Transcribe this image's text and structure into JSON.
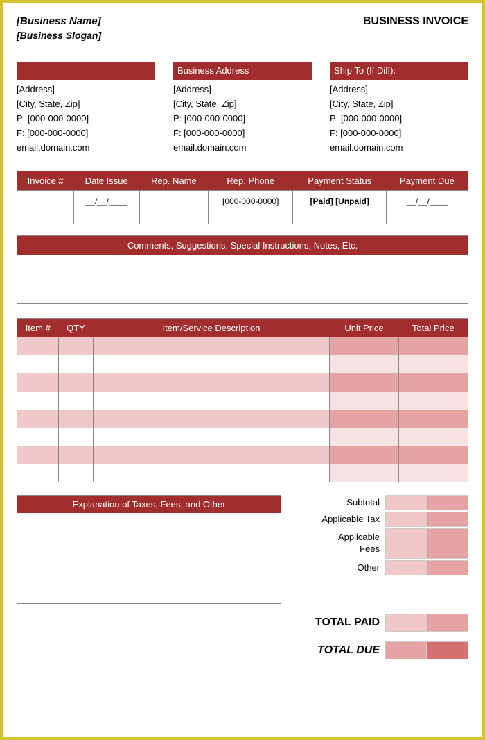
{
  "header": {
    "business_name": "[Business Name]",
    "business_slogan": "[Business Slogan]",
    "title": "BUSINESS INVOICE"
  },
  "addresses": {
    "col1": {
      "header": "",
      "address": "[Address]",
      "city": "[City, State, Zip]",
      "phone": "P: [000-000-0000]",
      "fax": "F: [000-000-0000]",
      "email": "email.domain.com"
    },
    "col2": {
      "header": "Business Address",
      "address": "[Address]",
      "city": "[City, State, Zip]",
      "phone": "P: [000-000-0000]",
      "fax": "F: [000-000-0000]",
      "email": "email.domain.com"
    },
    "col3": {
      "header": "Ship To (If Diff):",
      "address": "[Address]",
      "city": "[City, State, Zip]",
      "phone": "P: [000-000-0000]",
      "fax": "F: [000-000-0000]",
      "email": "email.domain.com"
    }
  },
  "meta": {
    "headers": {
      "invoice_no": "Invoice #",
      "date_issue": "Date Issue",
      "rep_name": "Rep. Name",
      "rep_phone": "Rep. Phone",
      "payment_status": "Payment Status",
      "payment_due": "Payment Due"
    },
    "values": {
      "invoice_no": "",
      "date_issue": "__/__/____",
      "rep_name": "",
      "rep_phone": "[000-000-0000]",
      "payment_status": "[Paid] [Unpaid]",
      "payment_due": "__/__/____"
    }
  },
  "comments": {
    "header": "Comments, Suggestions,  Special Instructions,  Notes, Etc."
  },
  "items": {
    "headers": {
      "item": "Item #",
      "qty": "QTY",
      "desc": "Item/Service Description",
      "unit": "Unit Price",
      "total": "Total Price"
    },
    "row_count": 8
  },
  "explain": {
    "header": "Explanation  of Taxes, Fees, and Other"
  },
  "totals": {
    "subtotal": "Subtotal",
    "tax": "Applicable Tax",
    "fees_line1": "Applicable",
    "fees_line2": "Fees",
    "other": "Other",
    "total_paid": "TOTAL PAID",
    "total_due": "TOTAL DUE"
  },
  "colors": {
    "accent": "#a22d2d",
    "stripe_light": "#efc9c9",
    "stripe_dark": "#e5a3a3",
    "border_outer": "#d4c22e"
  }
}
